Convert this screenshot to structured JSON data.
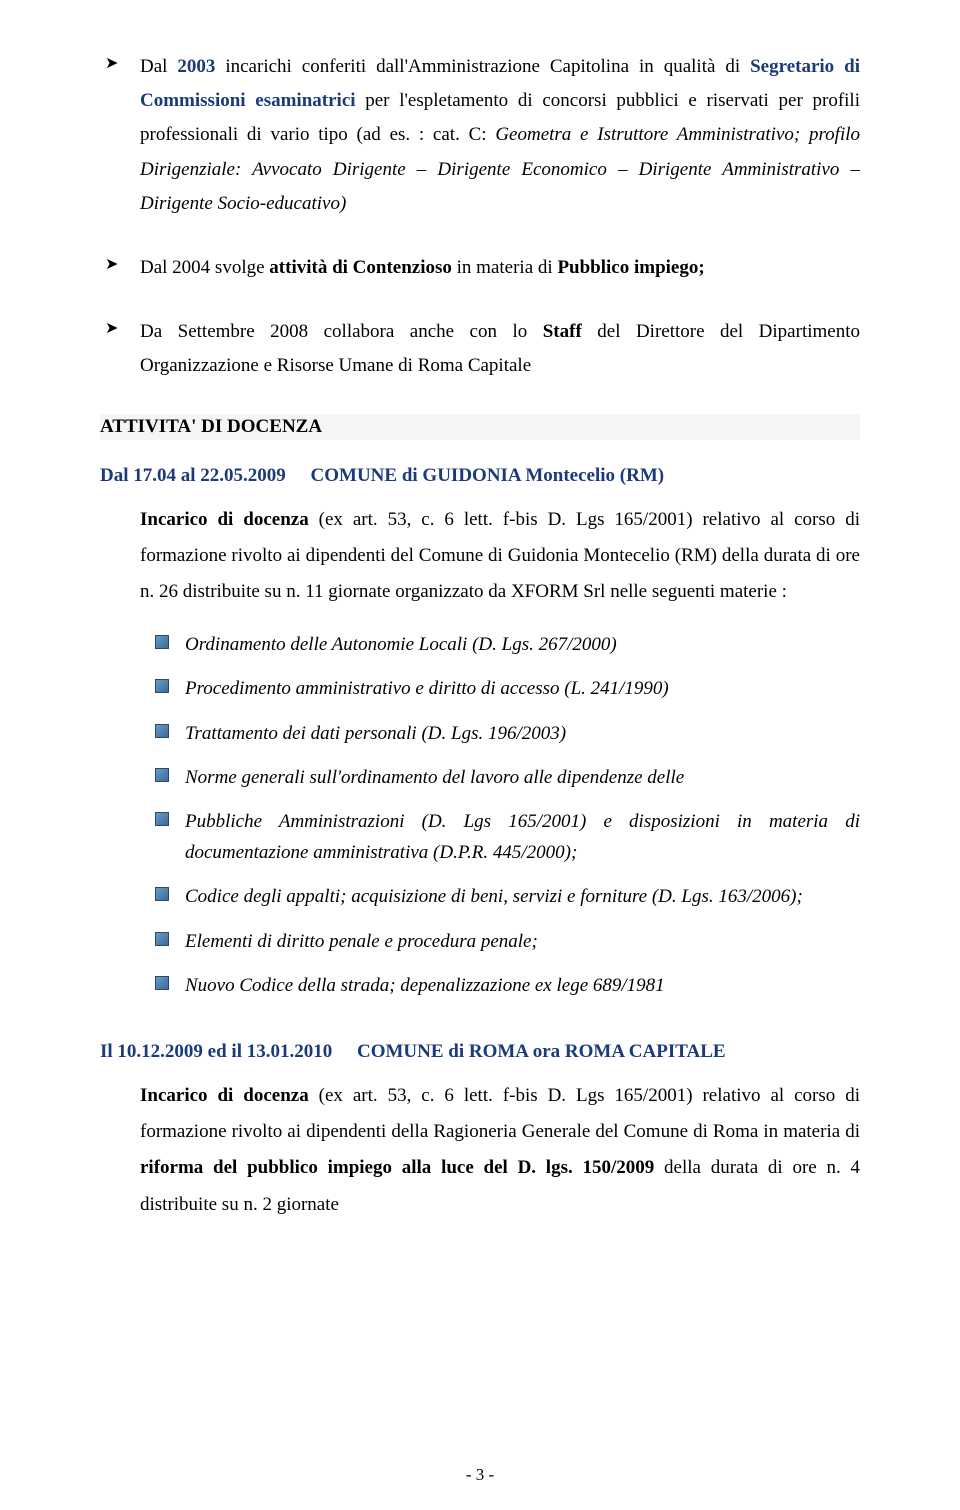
{
  "colors": {
    "blue_accent": "#1a3a7a",
    "text": "#000000",
    "background": "#ffffff",
    "heading_bg": "#f5f5f5",
    "square_bullet_from": "#6e9bc5",
    "square_bullet_to": "#3a6a9a"
  },
  "typography": {
    "body_font": "Garamond/Georgia serif",
    "body_size_pt": 14,
    "heading_size_pt": 14
  },
  "bullets": [
    {
      "prefix_text": "Dal ",
      "year": "2003",
      "rest_line1": " incarichi conferiti dall'Amministrazione Capitolina in qualità di ",
      "role": "Segretario di Commissioni esaminatrici",
      "rest_line2": " per l'espletamento di concorsi pubblici e riservati per profili professionali di vario tipo (ad es. :  cat. C: ",
      "italic_tail": "Geometra e Istruttore Amministrativo; profilo Dirigenziale: Avvocato Dirigente – Dirigente Economico – Dirigente Amministrativo – Dirigente Socio-educativo)"
    },
    {
      "text_pre": "Dal 2004 svolge ",
      "bold1": "attività di Contenzioso",
      "mid": " in materia di ",
      "bold2": "Pubblico impiego;"
    },
    {
      "text_pre": "Da Settembre 2008   collabora anche con lo ",
      "bold1": "Staff",
      "tail": " del Direttore del Dipartimento Organizzazione e Risorse Umane di Roma Capitale"
    }
  ],
  "section_heading": "ATTIVITA' DI DOCENZA",
  "docenza1": {
    "date": "Dal 17.04 al 22.05.2009",
    "org": "COMUNE di GUIDONIA Montecelio (RM)",
    "body_lead_bold": "Incarico di docenza",
    "body_lead_rest": " (ex art. 53, c. 6 lett. f-bis D. Lgs 165/2001) relativo al corso di formazione rivolto ai dipendenti del Comune di Guidonia Montecelio (RM) della durata di ore n. 26 distribuite su n. 11 giornate organizzato da XFORM Srl nelle seguenti materie :",
    "items": [
      "Ordinamento delle Autonomie Locali (D. Lgs. 267/2000)",
      "Procedimento amministrativo e diritto di accesso (L. 241/1990)",
      "Trattamento dei dati personali (D. Lgs. 196/2003)",
      "Norme generali sull'ordinamento del lavoro alle dipendenze delle",
      "Pubbliche Amministrazioni (D. Lgs 165/2001) e disposizioni in materia di documentazione amministrativa (D.P.R. 445/2000);",
      "Codice degli appalti; acquisizione di beni, servizi e forniture (D. Lgs. 163/2006);",
      "Elementi di diritto penale e procedura penale;",
      "Nuovo Codice della strada; depenalizzazione ex lege 689/1981"
    ]
  },
  "docenza2": {
    "date": "Il 10.12.2009  ed il 13.01.2010",
    "org": "COMUNE di ROMA ora ROMA CAPITALE",
    "body_lead_bold": "Incarico di docenza",
    "body_mid": " (ex art. 53, c. 6 lett. f-bis D. Lgs 165/2001) relativo al corso di formazione rivolto ai dipendenti della Ragioneria Generale del Comune di Roma in materia di ",
    "bold_tail": "riforma del pubblico impiego alla luce del D. lgs. 150/2009",
    "tail": " della durata di ore n. 4 distribuite su n. 2 giornate"
  },
  "page_number": "- 3 -"
}
